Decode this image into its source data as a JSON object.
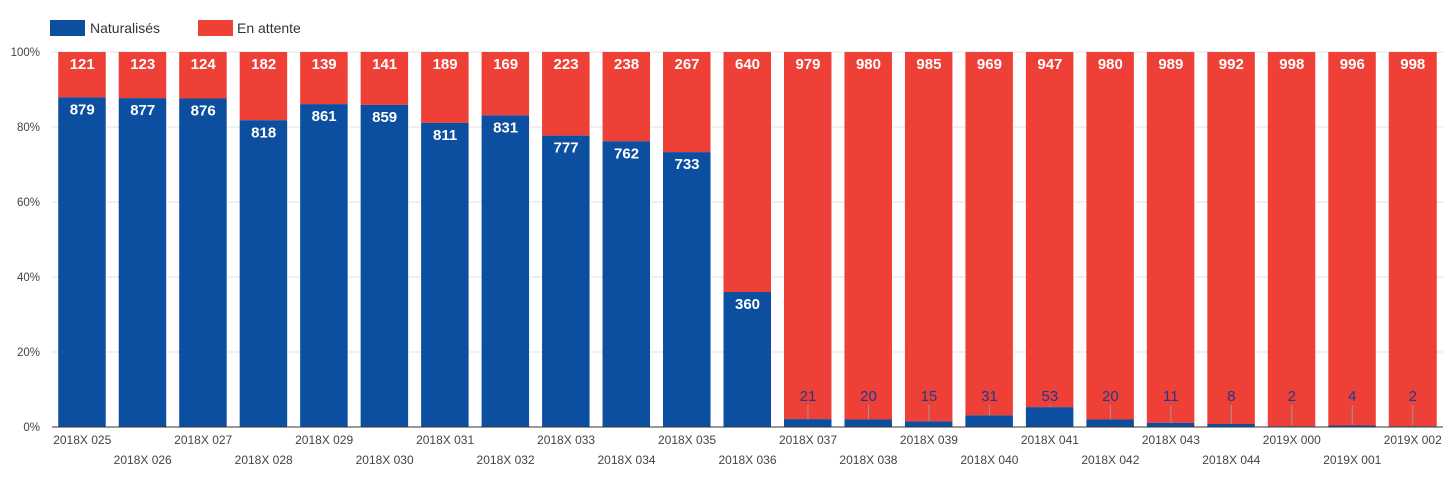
{
  "colors": {
    "naturalises": "#0c4fa0",
    "en_attente": "#ee4037",
    "axis": "#333333",
    "grid": "#e0e0e0",
    "leader": "#9a9a9a"
  },
  "chart_data": {
    "type": "bar",
    "stacked": "percent",
    "ylim": [
      0,
      100
    ],
    "yticks": [
      "0%",
      "20%",
      "40%",
      "60%",
      "80%",
      "100%"
    ],
    "grid": true,
    "legend": "top-left",
    "categories": [
      "2018X 025",
      "2018X 026",
      "2018X 027",
      "2018X 028",
      "2018X 029",
      "2018X 030",
      "2018X 031",
      "2018X 032",
      "2018X 033",
      "2018X 034",
      "2018X 035",
      "2018X 036",
      "2018X 037",
      "2018X 038",
      "2018X 039",
      "2018X 040",
      "2018X 041",
      "2018X 042",
      "2018X 043",
      "2018X 044",
      "2019X 000",
      "2019X 001",
      "2019X 002"
    ],
    "series": [
      {
        "name": "Naturalisés",
        "values": [
          879,
          877,
          876,
          818,
          861,
          859,
          811,
          831,
          777,
          762,
          733,
          360,
          21,
          20,
          15,
          31,
          53,
          20,
          11,
          8,
          2,
          4,
          2
        ]
      },
      {
        "name": "En attente",
        "values": [
          121,
          123,
          124,
          182,
          139,
          141,
          189,
          169,
          223,
          238,
          267,
          640,
          979,
          980,
          985,
          969,
          947,
          980,
          989,
          992,
          998,
          996,
          998
        ]
      }
    ]
  }
}
